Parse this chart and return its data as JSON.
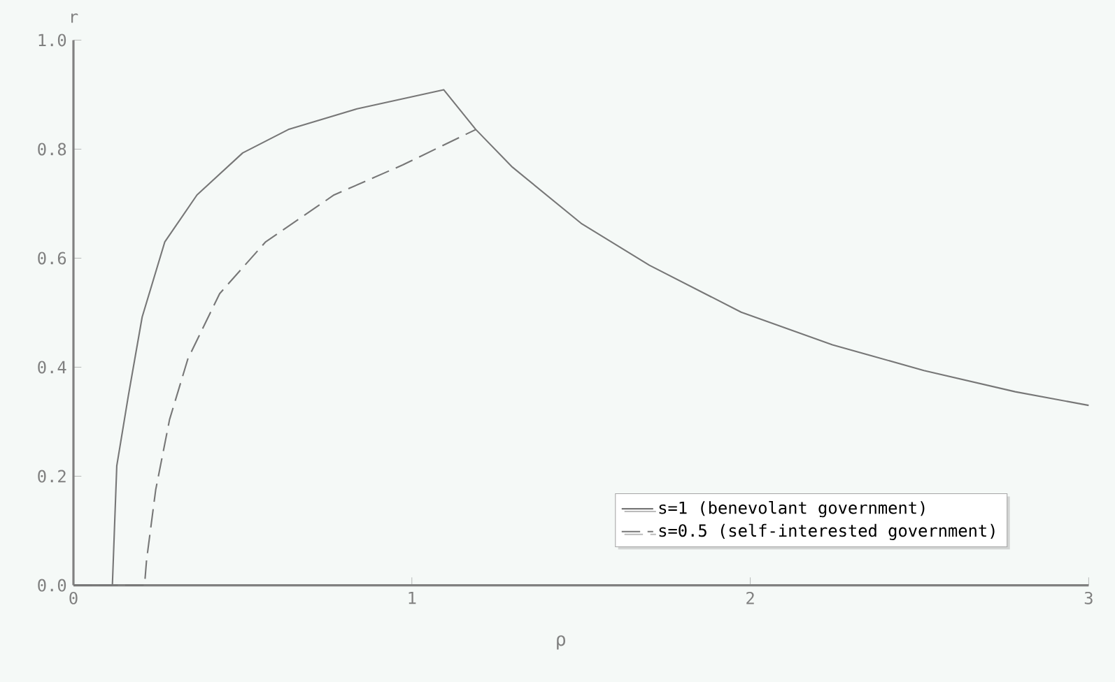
{
  "chart_data": {
    "type": "line",
    "xlabel": "ρ",
    "ylabel": "r",
    "xlim": [
      0,
      3
    ],
    "ylim": [
      0,
      1.0
    ],
    "xticks": [
      0,
      1,
      2,
      3
    ],
    "yticks": [
      {
        "value": 0,
        "label": "0.0"
      },
      {
        "value": 0.2,
        "label": "0.2"
      },
      {
        "value": 0.4,
        "label": "0.4"
      },
      {
        "value": 0.6,
        "label": "0.6"
      },
      {
        "value": 0.8,
        "label": "0.8"
      },
      {
        "value": 1.0,
        "label": "1.0"
      }
    ],
    "grid": false,
    "legend": "bottom right",
    "marker": "none",
    "series": [
      {
        "name": "s=1   (benevolant government)",
        "color": "#777777",
        "line_style": "solid",
        "x": [
          0,
          0.11,
          0.115,
          0.128,
          0.162,
          0.203,
          0.27,
          0.365,
          0.5,
          0.635,
          0.838,
          1.094,
          1.189,
          1.297,
          1.5,
          1.702,
          1.973,
          2.243,
          2.513,
          2.783,
          3.0
        ],
        "values": [
          0,
          0,
          0,
          0.219,
          0.347,
          0.492,
          0.63,
          0.716,
          0.793,
          0.836,
          0.874,
          0.909,
          0.836,
          0.767,
          0.664,
          0.587,
          0.501,
          0.441,
          0.394,
          0.355,
          0.33
        ]
      },
      {
        "name": "s=0.5 (self-interested government)",
        "color": "#777777",
        "line_style": "dashed",
        "x": [
          0,
          0.21,
          0.216,
          0.243,
          0.284,
          0.338,
          0.432,
          0.568,
          0.77,
          0.973,
          1.189
        ],
        "values": [
          0,
          0,
          0.046,
          0.175,
          0.304,
          0.415,
          0.535,
          0.63,
          0.716,
          0.771,
          0.836
        ]
      }
    ]
  }
}
